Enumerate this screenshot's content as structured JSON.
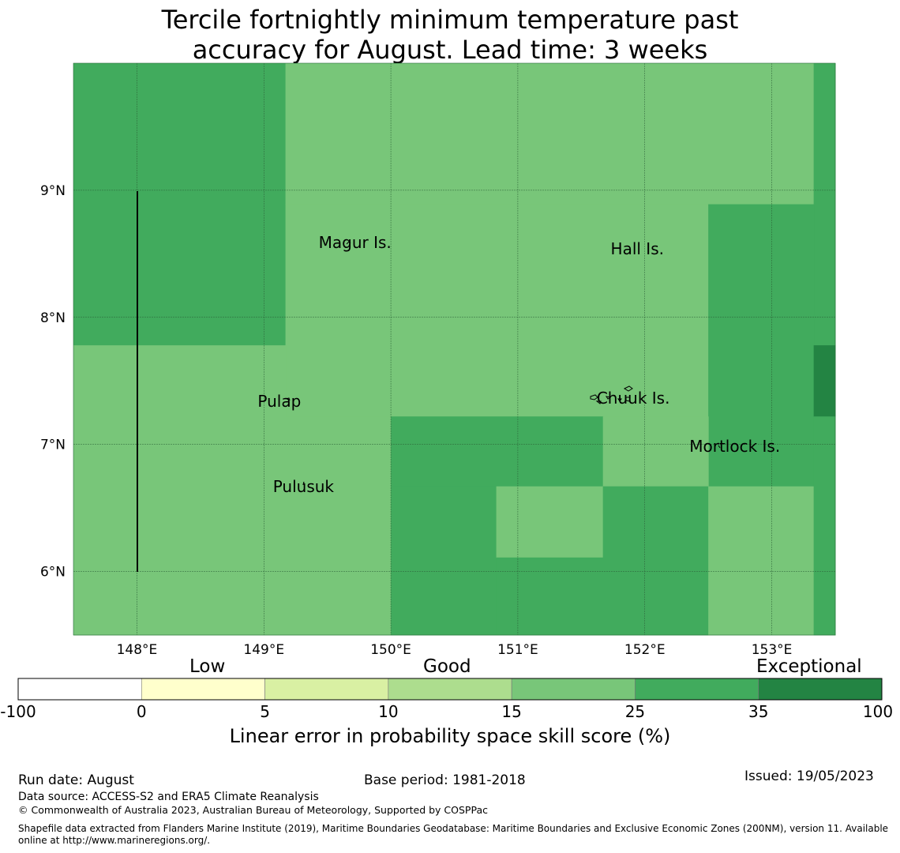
{
  "title": {
    "line1": "Tercile fortnightly minimum temperature past",
    "line2": "accuracy for August. Lead time: 3 weeks"
  },
  "map": {
    "lon_range": [
      147.5,
      153.5
    ],
    "lat_range": [
      5.5,
      10.0
    ],
    "x_ticks": [
      "148°E",
      "149°E",
      "150°E",
      "151°E",
      "152°E",
      "153°E"
    ],
    "y_ticks": [
      "9°N",
      "8°N",
      "7°N",
      "6°N"
    ],
    "grid": true,
    "skill_cells": [
      {
        "lon": [
          147.5,
          149.17
        ],
        "lat": [
          7.78,
          10.0
        ],
        "category": "25-35"
      },
      {
        "lon": [
          149.17,
          153.33
        ],
        "lat": [
          8.89,
          10.0
        ],
        "category": "15-25"
      },
      {
        "lon": [
          153.33,
          153.5
        ],
        "lat": [
          7.22,
          10.0
        ],
        "category": "25-35"
      },
      {
        "lon": [
          149.17,
          152.5
        ],
        "lat": [
          7.22,
          8.89
        ],
        "category": "15-25"
      },
      {
        "lon": [
          152.5,
          153.33
        ],
        "lat": [
          6.67,
          8.89
        ],
        "category": "25-35"
      },
      {
        "lon": [
          153.33,
          153.5
        ],
        "lat": [
          7.22,
          7.78
        ],
        "category": "35-100"
      },
      {
        "lon": [
          147.5,
          149.17
        ],
        "lat": [
          5.5,
          7.78
        ],
        "category": "15-25"
      },
      {
        "lon": [
          149.17,
          150.0
        ],
        "lat": [
          5.5,
          7.22
        ],
        "category": "15-25"
      },
      {
        "lon": [
          150.0,
          151.67
        ],
        "lat": [
          6.67,
          7.22
        ],
        "category": "25-35"
      },
      {
        "lon": [
          151.67,
          152.5
        ],
        "lat": [
          6.67,
          7.22
        ],
        "category": "15-25"
      },
      {
        "lon": [
          150.0,
          150.83
        ],
        "lat": [
          5.5,
          6.67
        ],
        "category": "25-35"
      },
      {
        "lon": [
          150.83,
          151.67
        ],
        "lat": [
          6.11,
          6.67
        ],
        "category": "15-25"
      },
      {
        "lon": [
          150.83,
          152.5
        ],
        "lat": [
          5.5,
          6.11
        ],
        "category": "25-35"
      },
      {
        "lon": [
          151.67,
          152.5
        ],
        "lat": [
          6.11,
          6.67
        ],
        "category": "25-35"
      },
      {
        "lon": [
          152.5,
          153.33
        ],
        "lat": [
          5.5,
          6.67
        ],
        "category": "15-25"
      },
      {
        "lon": [
          153.33,
          153.5
        ],
        "lat": [
          5.5,
          7.22
        ],
        "category": "25-35"
      }
    ],
    "places": [
      {
        "name": "Magur Is.",
        "lon": 149.68,
        "lat": 8.6
      },
      {
        "name": "Hall Is.",
        "lon": 151.98,
        "lat": 8.55
      },
      {
        "name": "Pulap",
        "lon": 149.2,
        "lat": 7.35
      },
      {
        "name": "Chuuk Is.",
        "lon": 151.87,
        "lat": 7.38
      },
      {
        "name": "Mortlock Is.",
        "lon": 152.6,
        "lat": 7.0
      },
      {
        "name": "Pulusuk",
        "lon": 149.32,
        "lat": 6.68
      }
    ]
  },
  "legend": {
    "categories": [
      "Low",
      "Good",
      "Exceptional"
    ],
    "ticks": [
      "-100",
      "0",
      "5",
      "10",
      "15",
      "25",
      "35",
      "100"
    ],
    "colors": {
      "-100-0": "#ffffff",
      "0-5": "#ffffcc",
      "5-10": "#d9f0a3",
      "10-15": "#addd8e",
      "15-25": "#78c679",
      "25-35": "#41ab5d",
      "35-100": "#238443"
    },
    "label": "Linear error in probability space skill score (%)"
  },
  "footer": {
    "run_date": "Run date: August",
    "base_period": "Base period: 1981-2018",
    "issued": "Issued: 19/05/2023",
    "data_source": "Data source: ACCESS-S2 and ERA5 Climate Reanalysis",
    "copyright": "© Commonwealth of Australia 2023, Australian Bureau of Meteorology, Supported by COSPPac",
    "shapefile_line1": "Shapefile data extracted from Flanders Marine Institute (2019), Maritime Boundaries Geodatabase: Maritime Boundaries and Exclusive Economic Zones (200NM), version 11. Available",
    "shapefile_line2": "online at http://www.marineregions.org/."
  }
}
